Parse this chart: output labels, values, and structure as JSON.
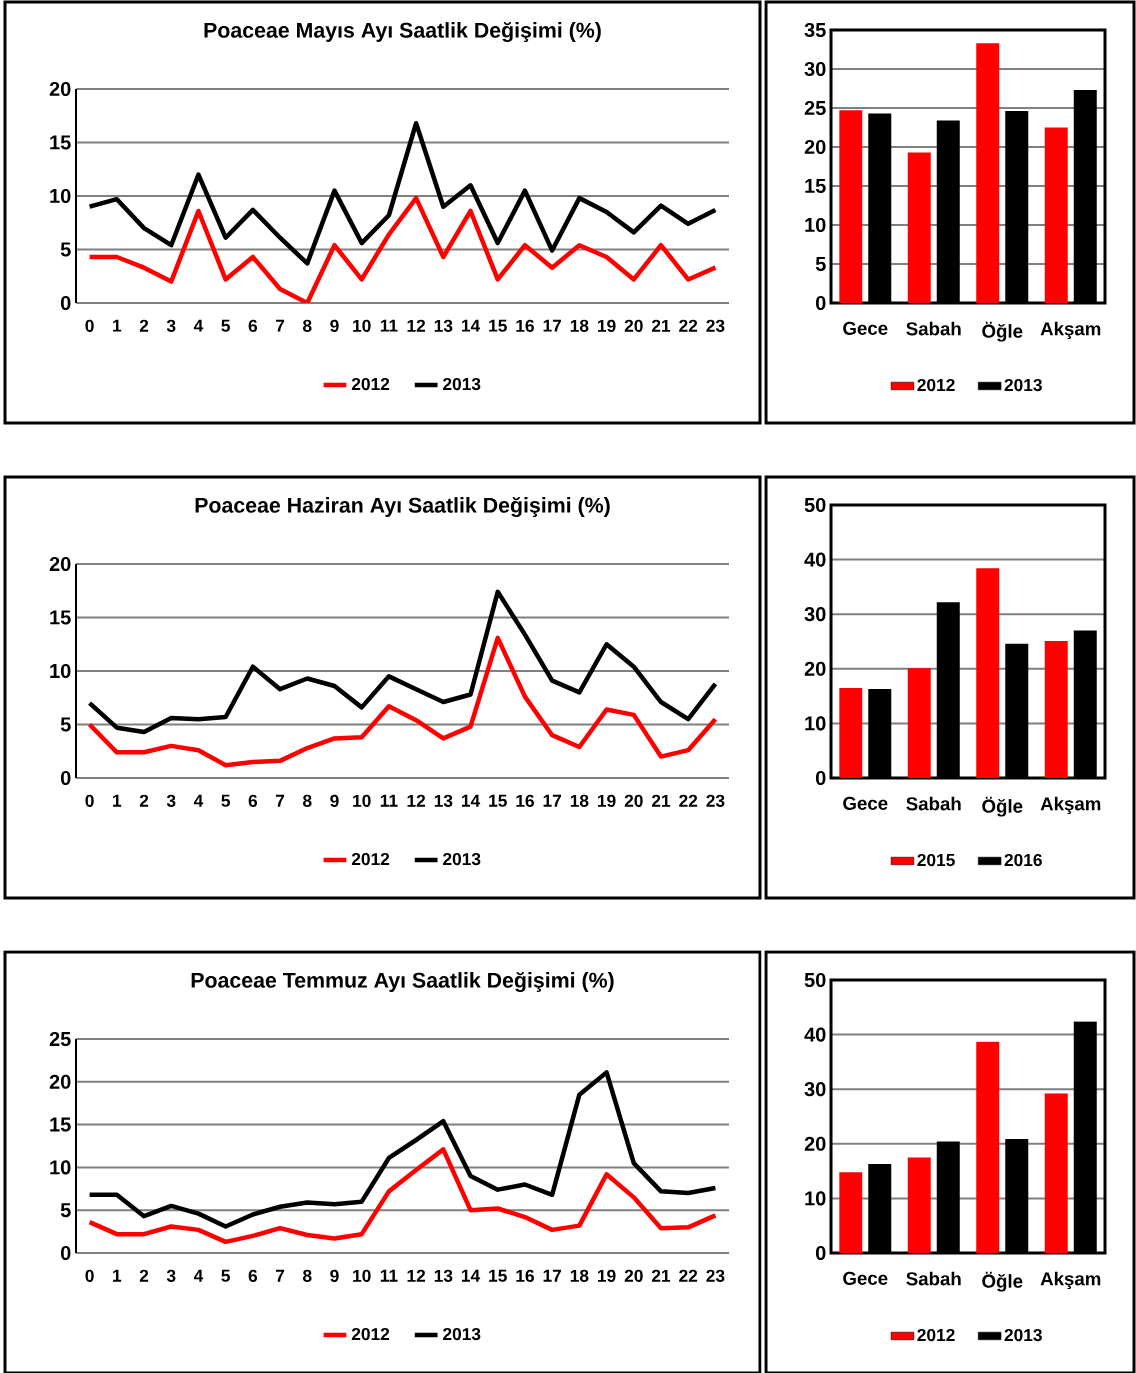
{
  "chart_data": [
    {
      "type": "line",
      "title": "Poaceae Mayıs Ayı Saatlik Değişimi (%)",
      "categories": [
        "0",
        "1",
        "2",
        "3",
        "4",
        "5",
        "6",
        "7",
        "8",
        "9",
        "10",
        "11",
        "12",
        "13",
        "14",
        "15",
        "16",
        "17",
        "18",
        "19",
        "20",
        "21",
        "22",
        "23"
      ],
      "ylim": [
        0,
        20
      ],
      "yticks": [
        0,
        5,
        10,
        15,
        20
      ],
      "grid": "y",
      "legend": "bottom",
      "series": [
        {
          "name": "2012",
          "color": "#ff0000",
          "values": [
            4.3,
            4.3,
            3.3,
            2.0,
            8.6,
            2.2,
            4.3,
            1.3,
            0.0,
            5.4,
            2.2,
            6.4,
            9.8,
            4.3,
            8.6,
            2.2,
            5.4,
            3.3,
            5.4,
            4.3,
            2.2,
            5.4,
            2.2,
            3.3
          ]
        },
        {
          "name": "2013",
          "color": "#000000",
          "values": [
            9.0,
            9.7,
            7.0,
            5.4,
            12.0,
            6.1,
            8.7,
            6.1,
            3.7,
            10.5,
            5.6,
            8.2,
            16.8,
            9.0,
            11.0,
            5.6,
            10.5,
            4.9,
            9.8,
            8.5,
            6.6,
            9.1,
            7.4,
            8.7
          ]
        }
      ]
    },
    {
      "type": "bar",
      "categories": [
        "Gece",
        "Sabah",
        "Öğle",
        "Akşam"
      ],
      "ylim": [
        0,
        35
      ],
      "yticks": [
        0,
        5,
        10,
        15,
        20,
        25,
        30,
        35
      ],
      "grid": "y",
      "legend": "bottom",
      "series": [
        {
          "name": "2012",
          "color": "#ff0000",
          "values": [
            24.7,
            19.3,
            33.3,
            22.5
          ]
        },
        {
          "name": "2013",
          "color": "#000000",
          "values": [
            24.3,
            23.4,
            24.6,
            27.3
          ]
        }
      ]
    },
    {
      "type": "line",
      "title": "Poaceae Haziran Ayı Saatlik Değişimi (%)",
      "categories": [
        "0",
        "1",
        "2",
        "3",
        "4",
        "5",
        "6",
        "7",
        "8",
        "9",
        "10",
        "11",
        "12",
        "13",
        "14",
        "15",
        "16",
        "17",
        "18",
        "19",
        "20",
        "21",
        "22",
        "23"
      ],
      "ylim": [
        0,
        20
      ],
      "yticks": [
        0,
        5,
        10,
        15,
        20
      ],
      "grid": "y",
      "legend": "bottom",
      "series": [
        {
          "name": "2012",
          "color": "#ff0000",
          "values": [
            5.0,
            2.4,
            2.4,
            3.0,
            2.6,
            1.2,
            1.5,
            1.6,
            2.8,
            3.7,
            3.8,
            6.7,
            5.4,
            3.7,
            4.8,
            13.1,
            7.6,
            4.0,
            2.9,
            6.4,
            5.9,
            2.0,
            2.6,
            5.5
          ]
        },
        {
          "name": "2013",
          "color": "#000000",
          "values": [
            7.0,
            4.7,
            4.3,
            5.6,
            5.5,
            5.7,
            10.4,
            8.3,
            9.3,
            8.6,
            6.6,
            9.5,
            8.3,
            7.1,
            7.8,
            17.4,
            13.4,
            9.1,
            8.0,
            12.5,
            10.4,
            7.1,
            5.5,
            8.8
          ]
        }
      ]
    },
    {
      "type": "bar",
      "categories": [
        "Gece",
        "Sabah",
        "Öğle",
        "Akşam"
      ],
      "ylim": [
        0,
        50
      ],
      "yticks": [
        0,
        10,
        20,
        30,
        40,
        50
      ],
      "grid": "y",
      "legend": "bottom",
      "series": [
        {
          "name": "2015",
          "color": "#ff0000",
          "values": [
            16.5,
            20.1,
            38.4,
            25.1
          ]
        },
        {
          "name": "2016",
          "color": "#000000",
          "values": [
            16.3,
            32.2,
            24.6,
            27.0
          ]
        }
      ]
    },
    {
      "type": "line",
      "title": "Poaceae Temmuz Ayı Saatlik Değişimi (%)",
      "categories": [
        "0",
        "1",
        "2",
        "3",
        "4",
        "5",
        "6",
        "7",
        "8",
        "9",
        "10",
        "11",
        "12",
        "13",
        "14",
        "15",
        "16",
        "17",
        "18",
        "19",
        "20",
        "21",
        "22",
        "23"
      ],
      "ylim": [
        0,
        25
      ],
      "yticks": [
        0,
        5,
        10,
        15,
        20,
        25
      ],
      "grid": "y",
      "legend": "bottom",
      "series": [
        {
          "name": "2012",
          "color": "#ff0000",
          "values": [
            3.6,
            2.2,
            2.2,
            3.1,
            2.7,
            1.3,
            2.0,
            2.9,
            2.1,
            1.7,
            2.2,
            7.2,
            9.7,
            12.1,
            5.0,
            5.2,
            4.2,
            2.7,
            3.2,
            9.2,
            6.5,
            2.9,
            3.0,
            4.4
          ]
        },
        {
          "name": "2013",
          "color": "#000000",
          "values": [
            6.8,
            6.8,
            4.3,
            5.5,
            4.6,
            3.1,
            4.5,
            5.4,
            5.9,
            5.7,
            6.0,
            11.1,
            13.2,
            15.4,
            9.0,
            7.4,
            8.0,
            6.8,
            18.5,
            21.1,
            10.5,
            7.2,
            7.0,
            7.6
          ]
        }
      ]
    },
    {
      "type": "bar",
      "categories": [
        "Gece",
        "Sabah",
        "Öğle",
        "Akşam"
      ],
      "ylim": [
        0,
        50
      ],
      "yticks": [
        0,
        10,
        20,
        30,
        40,
        50
      ],
      "grid": "y",
      "legend": "bottom",
      "series": [
        {
          "name": "2012",
          "color": "#ff0000",
          "values": [
            14.8,
            17.5,
            38.7,
            29.2
          ]
        },
        {
          "name": "2013",
          "color": "#000000",
          "values": [
            16.3,
            20.4,
            20.9,
            42.4
          ]
        }
      ]
    }
  ]
}
